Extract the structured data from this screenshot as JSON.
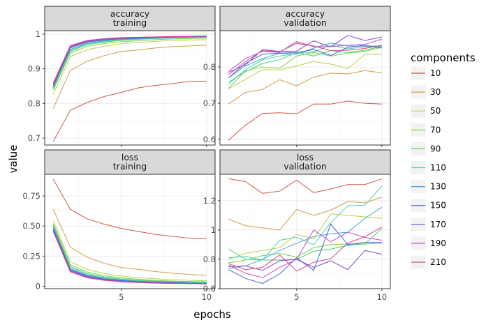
{
  "chart_data": {
    "type": "line",
    "xlabel": "epochs",
    "ylabel": "value",
    "legend": {
      "title": "components",
      "placement": "right"
    },
    "x": [
      1,
      2,
      3,
      4,
      5,
      6,
      7,
      8,
      9,
      10
    ],
    "x_ticks": [
      "5",
      "10"
    ],
    "grid": true,
    "series_meta": [
      {
        "name": "10",
        "color": "#d35845"
      },
      {
        "name": "30",
        "color": "#d29c4b"
      },
      {
        "name": "50",
        "color": "#bcd24a"
      },
      {
        "name": "70",
        "color": "#76d348"
      },
      {
        "name": "90",
        "color": "#48d368"
      },
      {
        "name": "110",
        "color": "#4bd4ae"
      },
      {
        "name": "130",
        "color": "#48a9d2"
      },
      {
        "name": "150",
        "color": "#4861d3"
      },
      {
        "name": "170",
        "color": "#7f47d3"
      },
      {
        "name": "190",
        "color": "#c549d4"
      },
      {
        "name": "210",
        "color": "#d34883"
      }
    ],
    "panels": [
      {
        "strip": [
          "accuracy",
          "training"
        ],
        "ylim": [
          0.68,
          1.01
        ],
        "yticks": [
          {
            "v": 0.7,
            "label": "0.7"
          },
          {
            "v": 0.8,
            "label": "0.8"
          },
          {
            "v": 0.9,
            "label": "0.9"
          },
          {
            "v": 1.0,
            "label": "1"
          }
        ],
        "series": [
          [
            0.69,
            0.78,
            0.803,
            0.82,
            0.832,
            0.845,
            0.852,
            0.857,
            0.864,
            0.864
          ],
          [
            0.785,
            0.895,
            0.922,
            0.938,
            0.95,
            0.954,
            0.96,
            0.964,
            0.966,
            0.968
          ],
          [
            0.826,
            0.935,
            0.955,
            0.965,
            0.972,
            0.976,
            0.979,
            0.982,
            0.983,
            0.984
          ],
          [
            0.838,
            0.945,
            0.965,
            0.973,
            0.978,
            0.981,
            0.984,
            0.986,
            0.987,
            0.988
          ],
          [
            0.843,
            0.95,
            0.97,
            0.977,
            0.982,
            0.985,
            0.987,
            0.989,
            0.99,
            0.991
          ],
          [
            0.846,
            0.953,
            0.972,
            0.979,
            0.984,
            0.986,
            0.988,
            0.99,
            0.991,
            0.992
          ],
          [
            0.848,
            0.956,
            0.974,
            0.981,
            0.985,
            0.987,
            0.989,
            0.99,
            0.991,
            0.992
          ],
          [
            0.851,
            0.96,
            0.977,
            0.983,
            0.987,
            0.988,
            0.99,
            0.991,
            0.992,
            0.993
          ],
          [
            0.853,
            0.963,
            0.979,
            0.985,
            0.988,
            0.989,
            0.991,
            0.992,
            0.993,
            0.994
          ],
          [
            0.856,
            0.965,
            0.981,
            0.986,
            0.989,
            0.99,
            0.991,
            0.992,
            0.993,
            0.994
          ],
          [
            0.859,
            0.967,
            0.982,
            0.987,
            0.99,
            0.991,
            0.992,
            0.993,
            0.994,
            0.995
          ]
        ]
      },
      {
        "strip": [
          "accuracy",
          "validation"
        ],
        "ylim": [
          0.585,
          0.9
        ],
        "yticks": [
          {
            "v": 0.6,
            "label": "0.6"
          },
          {
            "v": 0.7,
            "label": "0.7"
          },
          {
            "v": 0.8,
            "label": "0.8"
          }
        ],
        "series": [
          [
            0.598,
            0.64,
            0.672,
            0.674,
            0.671,
            0.698,
            0.698,
            0.706,
            0.7,
            0.698
          ],
          [
            0.698,
            0.73,
            0.738,
            0.765,
            0.748,
            0.772,
            0.783,
            0.781,
            0.79,
            0.784
          ],
          [
            0.74,
            0.766,
            0.793,
            0.792,
            0.803,
            0.815,
            0.808,
            0.796,
            0.834,
            0.835
          ],
          [
            0.741,
            0.79,
            0.8,
            0.796,
            0.83,
            0.84,
            0.83,
            0.838,
            0.843,
            0.854
          ],
          [
            0.758,
            0.787,
            0.81,
            0.82,
            0.84,
            0.83,
            0.845,
            0.84,
            0.846,
            0.857
          ],
          [
            0.752,
            0.793,
            0.82,
            0.83,
            0.837,
            0.842,
            0.86,
            0.85,
            0.855,
            0.856
          ],
          [
            0.77,
            0.803,
            0.823,
            0.838,
            0.835,
            0.852,
            0.866,
            0.858,
            0.857,
            0.858
          ],
          [
            0.77,
            0.81,
            0.835,
            0.838,
            0.84,
            0.848,
            0.832,
            0.854,
            0.86,
            0.852
          ],
          [
            0.785,
            0.806,
            0.848,
            0.843,
            0.844,
            0.872,
            0.855,
            0.887,
            0.873,
            0.883
          ],
          [
            0.788,
            0.823,
            0.843,
            0.84,
            0.87,
            0.856,
            0.856,
            0.86,
            0.862,
            0.877
          ],
          [
            0.778,
            0.815,
            0.845,
            0.842,
            0.865,
            0.858,
            0.845,
            0.846,
            0.851,
            0.86
          ]
        ]
      },
      {
        "strip": [
          "loss",
          "training"
        ],
        "ylim": [
          -0.02,
          0.93
        ],
        "yticks": [
          {
            "v": 0.0,
            "label": "0"
          },
          {
            "v": 0.25,
            "label": "0.25"
          },
          {
            "v": 0.5,
            "label": "0.50"
          },
          {
            "v": 0.75,
            "label": "0.75"
          }
        ],
        "series": [
          [
            0.89,
            0.64,
            0.56,
            0.515,
            0.48,
            0.455,
            0.43,
            0.415,
            0.398,
            0.394
          ],
          [
            0.64,
            0.325,
            0.24,
            0.19,
            0.155,
            0.14,
            0.122,
            0.108,
            0.098,
            0.092
          ],
          [
            0.545,
            0.205,
            0.14,
            0.105,
            0.085,
            0.072,
            0.062,
            0.054,
            0.05,
            0.045
          ],
          [
            0.52,
            0.18,
            0.118,
            0.088,
            0.068,
            0.058,
            0.049,
            0.043,
            0.039,
            0.036
          ],
          [
            0.51,
            0.165,
            0.105,
            0.077,
            0.06,
            0.05,
            0.043,
            0.038,
            0.034,
            0.031
          ],
          [
            0.5,
            0.155,
            0.097,
            0.07,
            0.054,
            0.045,
            0.039,
            0.034,
            0.031,
            0.028
          ],
          [
            0.49,
            0.145,
            0.09,
            0.065,
            0.05,
            0.042,
            0.036,
            0.032,
            0.029,
            0.026
          ],
          [
            0.48,
            0.138,
            0.084,
            0.06,
            0.046,
            0.038,
            0.033,
            0.029,
            0.026,
            0.024
          ],
          [
            0.47,
            0.13,
            0.078,
            0.055,
            0.042,
            0.035,
            0.03,
            0.027,
            0.024,
            0.022
          ],
          [
            0.462,
            0.125,
            0.074,
            0.052,
            0.04,
            0.033,
            0.028,
            0.025,
            0.022,
            0.02
          ],
          [
            0.455,
            0.12,
            0.07,
            0.049,
            0.037,
            0.031,
            0.026,
            0.023,
            0.021,
            0.019
          ]
        ]
      },
      {
        "strip": [
          "loss",
          "validation"
        ],
        "ylim": [
          0.6,
          1.38
        ],
        "yticks": [
          {
            "v": 0.6,
            "label": "0.6"
          },
          {
            "v": 0.8,
            "label": "0.8"
          },
          {
            "v": 1.0,
            "label": "1"
          },
          {
            "v": 1.2,
            "label": "1.2"
          }
        ],
        "series": [
          [
            1.35,
            1.33,
            1.25,
            1.265,
            1.34,
            1.255,
            1.28,
            1.31,
            1.31,
            1.35
          ],
          [
            1.075,
            1.03,
            1.015,
            1.0,
            1.14,
            1.1,
            1.135,
            1.195,
            1.185,
            1.225
          ],
          [
            0.8,
            0.84,
            0.86,
            0.88,
            0.97,
            0.94,
            1.11,
            1.1,
            1.09,
            1.08
          ],
          [
            0.775,
            0.795,
            0.825,
            0.84,
            0.815,
            0.88,
            0.9,
            0.905,
            0.905,
            0.91
          ],
          [
            0.87,
            0.8,
            0.795,
            0.795,
            0.8,
            0.855,
            0.87,
            0.895,
            0.905,
            1.01
          ],
          [
            0.81,
            0.82,
            0.795,
            0.93,
            0.95,
            0.9,
            1.05,
            1.165,
            1.17,
            1.3
          ],
          [
            0.74,
            0.755,
            0.8,
            0.86,
            0.91,
            0.955,
            0.975,
            0.985,
            1.08,
            1.155
          ],
          [
            0.73,
            0.67,
            0.635,
            0.7,
            0.81,
            0.725,
            1.04,
            0.9,
            0.915,
            0.915
          ],
          [
            0.75,
            0.755,
            0.725,
            0.79,
            0.8,
            0.745,
            0.79,
            0.73,
            0.86,
            0.835
          ],
          [
            0.76,
            0.705,
            0.675,
            0.745,
            0.8,
            1.0,
            0.92,
            0.985,
            0.95,
            0.93
          ],
          [
            0.77,
            0.73,
            0.745,
            0.83,
            0.72,
            0.78,
            0.805,
            0.91,
            0.955,
            1.02
          ]
        ]
      }
    ]
  }
}
